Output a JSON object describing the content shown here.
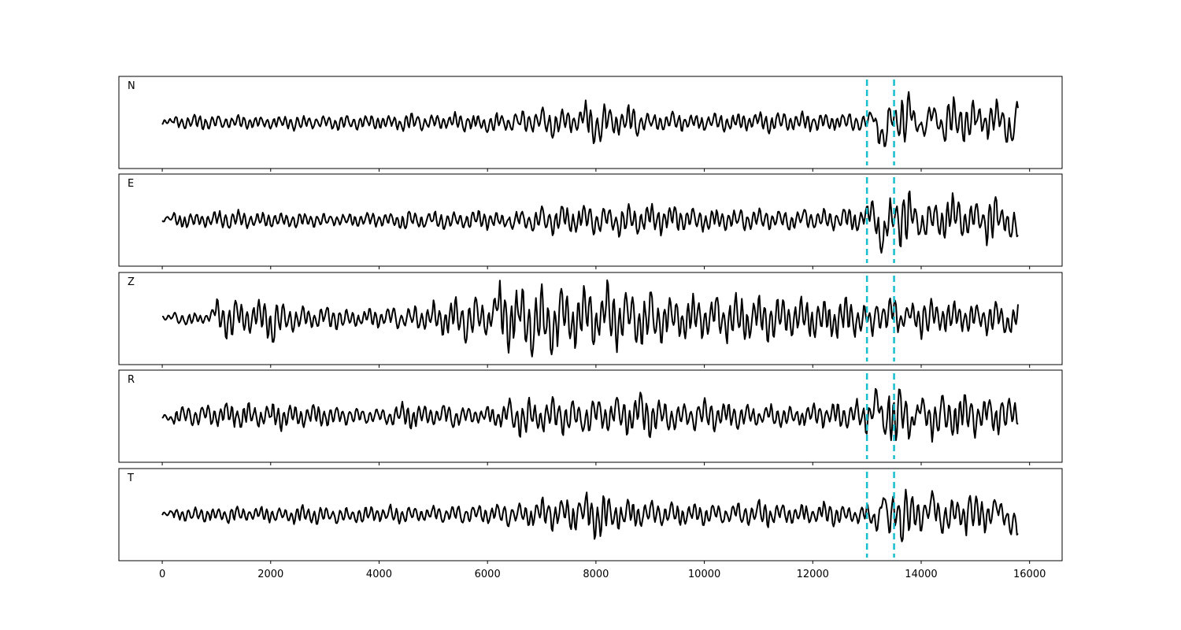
{
  "chart_data": {
    "type": "line",
    "title": "",
    "xlabel": "",
    "ylabel": "",
    "xlim": [
      -800,
      16600
    ],
    "x_ticks": [
      0,
      2000,
      4000,
      6000,
      8000,
      10000,
      12000,
      14000,
      16000
    ],
    "x_tick_labels": [
      "0",
      "2000",
      "4000",
      "6000",
      "8000",
      "10000",
      "12000",
      "14000",
      "16000"
    ],
    "sample_count": 15800,
    "vertical_markers": [
      13000,
      13500
    ],
    "marker_color": "#17becf",
    "trace_color": "#000000",
    "grid": false,
    "legend": "none",
    "series": [
      {
        "name": "N",
        "ylim": [
          -1,
          1
        ],
        "x": [
          0,
          200,
          400,
          600,
          800,
          1000,
          1200,
          1400,
          1600,
          1800,
          2000,
          2200,
          2400,
          2600,
          2800,
          3000,
          3200,
          3400,
          3600,
          3800,
          4000,
          4200,
          4400,
          4600,
          4800,
          5000,
          5200,
          5400,
          5600,
          5800,
          6000,
          6200,
          6400,
          6600,
          6800,
          7000,
          7200,
          7400,
          7600,
          7800,
          8000,
          8200,
          8400,
          8600,
          8800,
          9000,
          9200,
          9400,
          9600,
          9800,
          10000,
          10200,
          10400,
          10600,
          10800,
          11000,
          11200,
          11400,
          11600,
          11800,
          12000,
          12200,
          12400,
          12600,
          12800,
          13000,
          13100,
          13200,
          13300,
          13400,
          13500,
          13600,
          13800,
          14000,
          14200,
          14400,
          14600,
          14800,
          15000,
          15200,
          15400,
          15600,
          15800
        ],
        "y": [
          0.0,
          0.1,
          -0.1,
          0.15,
          -0.12,
          0.1,
          -0.08,
          0.12,
          -0.1,
          0.08,
          -0.1,
          0.12,
          -0.15,
          0.1,
          -0.1,
          0.12,
          -0.14,
          0.1,
          -0.12,
          0.15,
          -0.1,
          0.12,
          -0.18,
          0.15,
          -0.12,
          0.14,
          -0.1,
          0.18,
          -0.15,
          0.12,
          -0.22,
          0.15,
          -0.18,
          0.25,
          -0.2,
          0.3,
          -0.28,
          0.25,
          -0.2,
          0.45,
          -0.55,
          0.3,
          -0.25,
          0.35,
          -0.2,
          0.18,
          -0.15,
          0.2,
          -0.12,
          0.15,
          -0.12,
          0.2,
          -0.15,
          0.18,
          -0.12,
          0.22,
          -0.18,
          0.2,
          -0.15,
          0.2,
          -0.18,
          0.15,
          -0.12,
          0.2,
          -0.15,
          0.1,
          0.4,
          -0.3,
          -1.0,
          0.2,
          0.3,
          -0.2,
          0.55,
          -0.45,
          0.5,
          -0.3,
          0.45,
          -0.35,
          0.5,
          -0.3,
          0.55,
          -0.6,
          0.45
        ]
      },
      {
        "name": "E",
        "ylim": [
          -1,
          1
        ],
        "x": [
          0,
          200,
          400,
          600,
          800,
          1000,
          1200,
          1400,
          1600,
          1800,
          2000,
          2200,
          2400,
          2600,
          2800,
          3000,
          3200,
          3400,
          3600,
          3800,
          4000,
          4200,
          4400,
          4600,
          4800,
          5000,
          5200,
          5400,
          5600,
          5800,
          6000,
          6200,
          6400,
          6600,
          6800,
          7000,
          7200,
          7400,
          7600,
          7800,
          8000,
          8200,
          8400,
          8600,
          8800,
          9000,
          9200,
          9400,
          9600,
          9800,
          10000,
          10200,
          10400,
          10600,
          10800,
          11000,
          11200,
          11400,
          11600,
          11800,
          12000,
          12200,
          12400,
          12600,
          12800,
          13000,
          13100,
          13200,
          13300,
          13400,
          13500,
          13600,
          13800,
          14000,
          14200,
          14400,
          14600,
          14800,
          15000,
          15200,
          15400,
          15600,
          15800
        ],
        "y": [
          0.0,
          0.12,
          -0.15,
          0.1,
          -0.12,
          0.2,
          -0.15,
          0.18,
          -0.12,
          0.15,
          -0.1,
          0.12,
          -0.15,
          0.1,
          -0.12,
          0.08,
          -0.1,
          0.12,
          -0.1,
          0.15,
          -0.12,
          0.1,
          -0.2,
          0.15,
          -0.12,
          0.18,
          -0.15,
          0.12,
          -0.18,
          0.2,
          -0.15,
          0.12,
          -0.2,
          0.18,
          -0.22,
          0.25,
          -0.28,
          0.3,
          -0.25,
          0.35,
          -0.3,
          0.25,
          -0.35,
          0.3,
          -0.28,
          0.35,
          -0.25,
          0.3,
          -0.2,
          0.25,
          -0.22,
          0.2,
          -0.18,
          0.25,
          -0.2,
          0.22,
          -0.15,
          0.2,
          -0.18,
          0.22,
          -0.15,
          0.2,
          -0.18,
          0.25,
          -0.2,
          0.3,
          0.5,
          -0.5,
          -1.0,
          0.3,
          0.4,
          -0.4,
          0.5,
          -0.45,
          0.35,
          -0.3,
          0.65,
          -0.3,
          0.4,
          -0.35,
          0.3,
          -0.25,
          -0.2
        ]
      },
      {
        "name": "Z",
        "ylim": [
          -1,
          1
        ],
        "x": [
          0,
          200,
          400,
          600,
          800,
          1000,
          1200,
          1400,
          1600,
          1800,
          2000,
          2200,
          2400,
          2600,
          2800,
          3000,
          3200,
          3400,
          3600,
          3800,
          4000,
          4200,
          4400,
          4600,
          4800,
          5000,
          5200,
          5400,
          5600,
          5800,
          6000,
          6200,
          6400,
          6600,
          6800,
          7000,
          7200,
          7400,
          7600,
          7800,
          8000,
          8200,
          8400,
          8600,
          8800,
          9000,
          9200,
          9400,
          9600,
          9800,
          10000,
          10200,
          10400,
          10600,
          10800,
          11000,
          11200,
          11400,
          11600,
          11800,
          12000,
          12200,
          12400,
          12600,
          12800,
          13000,
          13100,
          13200,
          13300,
          13400,
          13500,
          13600,
          13800,
          14000,
          14200,
          14400,
          14600,
          14800,
          15000,
          15200,
          15400,
          15600,
          15800
        ],
        "y": [
          0.0,
          0.1,
          -0.1,
          0.05,
          -0.08,
          0.4,
          -0.5,
          0.35,
          -0.3,
          0.5,
          -0.55,
          0.3,
          -0.25,
          0.2,
          -0.2,
          0.25,
          -0.2,
          0.15,
          -0.12,
          0.2,
          -0.15,
          0.25,
          -0.2,
          0.3,
          -0.25,
          0.35,
          -0.4,
          0.45,
          -0.5,
          0.4,
          -0.3,
          0.9,
          -0.7,
          0.95,
          -0.85,
          0.7,
          -0.95,
          0.65,
          -0.7,
          0.75,
          -0.5,
          0.8,
          -0.6,
          0.7,
          -0.7,
          0.55,
          -0.5,
          0.45,
          -0.5,
          0.5,
          -0.45,
          0.5,
          -0.55,
          0.6,
          -0.45,
          0.5,
          -0.55,
          0.45,
          -0.4,
          0.5,
          -0.45,
          0.4,
          -0.5,
          0.45,
          -0.35,
          0.25,
          -0.45,
          0.4,
          -0.2,
          0.3,
          0.5,
          -0.3,
          0.4,
          -0.3,
          0.35,
          -0.25,
          0.4,
          -0.3,
          0.3,
          -0.25,
          0.3,
          -0.45,
          0.4
        ]
      },
      {
        "name": "R",
        "ylim": [
          -1,
          1
        ],
        "x": [
          0,
          200,
          400,
          600,
          800,
          1000,
          1200,
          1400,
          1600,
          1800,
          2000,
          2200,
          2400,
          2600,
          2800,
          3000,
          3200,
          3400,
          3600,
          3800,
          4000,
          4200,
          4400,
          4600,
          4800,
          5000,
          5200,
          5400,
          5600,
          5800,
          6000,
          6200,
          6400,
          6600,
          6800,
          7000,
          7200,
          7400,
          7600,
          7800,
          8000,
          8200,
          8400,
          8600,
          8800,
          9000,
          9200,
          9400,
          9600,
          9800,
          10000,
          10200,
          10400,
          10600,
          10800,
          11000,
          11200,
          11400,
          11600,
          11800,
          12000,
          12200,
          12400,
          12600,
          12800,
          13000,
          13100,
          13200,
          13300,
          13400,
          13500,
          13600,
          13800,
          14000,
          14200,
          14400,
          14600,
          14800,
          15000,
          15200,
          15400,
          15600,
          15800
        ],
        "y": [
          0.0,
          -0.15,
          0.2,
          -0.2,
          0.25,
          -0.2,
          0.3,
          -0.25,
          0.25,
          -0.2,
          0.3,
          -0.25,
          0.2,
          -0.2,
          0.25,
          -0.2,
          0.15,
          -0.15,
          0.12,
          -0.12,
          0.15,
          -0.2,
          0.3,
          -0.25,
          0.2,
          -0.15,
          0.25,
          -0.2,
          0.15,
          -0.12,
          0.2,
          -0.25,
          0.35,
          -0.5,
          0.3,
          -0.35,
          0.4,
          -0.35,
          0.3,
          -0.4,
          0.35,
          -0.3,
          0.45,
          -0.35,
          0.5,
          -0.4,
          0.35,
          -0.3,
          0.25,
          -0.3,
          0.35,
          -0.25,
          0.3,
          -0.25,
          0.2,
          -0.15,
          0.25,
          -0.2,
          0.15,
          -0.2,
          0.25,
          -0.2,
          0.3,
          -0.25,
          0.35,
          -0.35,
          0.4,
          1.0,
          -0.55,
          0.2,
          -0.35,
          0.5,
          -0.45,
          0.5,
          -0.5,
          0.35,
          -0.4,
          0.45,
          -0.35,
          0.4,
          -0.3,
          0.35,
          0.0
        ]
      },
      {
        "name": "T",
        "ylim": [
          -1,
          1
        ],
        "x": [
          0,
          200,
          400,
          600,
          800,
          1000,
          1200,
          1400,
          1600,
          1800,
          2000,
          2200,
          2400,
          2600,
          2800,
          3000,
          3200,
          3400,
          3600,
          3800,
          4000,
          4200,
          4400,
          4600,
          4800,
          5000,
          5200,
          5400,
          5600,
          5800,
          6000,
          6200,
          6400,
          6600,
          6800,
          7000,
          7200,
          7400,
          7600,
          7800,
          8000,
          8200,
          8400,
          8600,
          8800,
          9000,
          9200,
          9400,
          9600,
          9800,
          10000,
          10200,
          10400,
          10600,
          10800,
          11000,
          11200,
          11400,
          11600,
          11800,
          12000,
          12200,
          12400,
          12600,
          12800,
          13000,
          13100,
          13200,
          13300,
          13400,
          13500,
          13600,
          13800,
          14000,
          14200,
          14400,
          14600,
          14800,
          15000,
          15200,
          15400,
          15600,
          15800
        ],
        "y": [
          0.0,
          0.1,
          -0.1,
          0.12,
          -0.12,
          0.1,
          -0.15,
          0.12,
          -0.1,
          0.15,
          -0.12,
          0.1,
          -0.18,
          0.15,
          -0.2,
          0.12,
          -0.15,
          0.1,
          -0.18,
          0.15,
          -0.12,
          0.18,
          -0.15,
          0.12,
          -0.1,
          0.15,
          -0.12,
          0.2,
          -0.15,
          0.18,
          -0.15,
          0.25,
          -0.2,
          0.22,
          -0.25,
          0.35,
          -0.3,
          0.4,
          -0.35,
          0.5,
          -0.6,
          0.35,
          -0.3,
          0.3,
          -0.25,
          0.3,
          -0.2,
          0.25,
          -0.2,
          0.22,
          -0.18,
          0.2,
          -0.15,
          0.25,
          -0.2,
          0.3,
          -0.2,
          0.2,
          -0.15,
          0.2,
          -0.15,
          0.25,
          -0.2,
          0.15,
          -0.18,
          0.2,
          -0.15,
          -0.5,
          1.0,
          -0.4,
          0.3,
          -0.35,
          0.4,
          -0.3,
          0.6,
          -0.45,
          0.3,
          -0.25,
          0.35,
          -0.3,
          0.45,
          -0.4,
          -0.45
        ]
      }
    ]
  }
}
